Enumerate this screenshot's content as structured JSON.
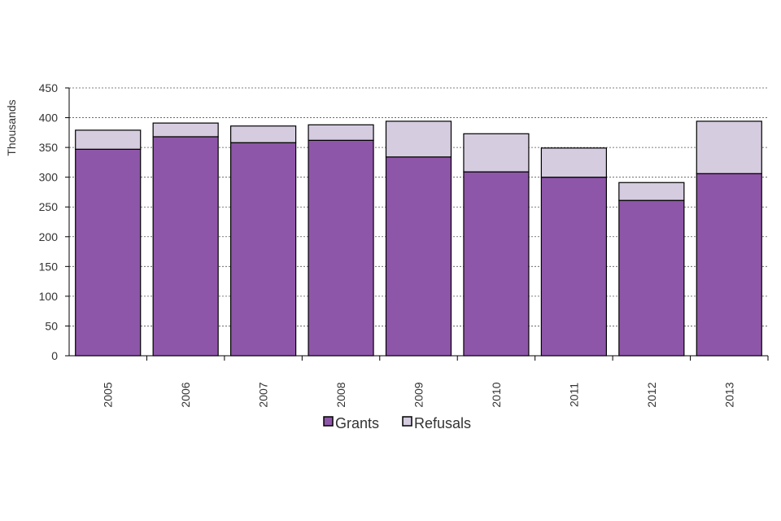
{
  "chart_data": {
    "type": "bar",
    "stacked": true,
    "title": "",
    "xlabel": "",
    "ylabel": "Thousands",
    "ylim": [
      0,
      450
    ],
    "yticks": [
      0,
      50,
      100,
      150,
      200,
      250,
      300,
      350,
      400,
      450
    ],
    "grid": true,
    "legend_position": "bottom",
    "categories": [
      "2005",
      "2006",
      "2007",
      "2008",
      "2009",
      "2010",
      "2011",
      "2012",
      "2013"
    ],
    "series": [
      {
        "name": "Grants",
        "color": "#8E56A8",
        "values": [
          347,
          368,
          358,
          362,
          334,
          309,
          300,
          261,
          306
        ]
      },
      {
        "name": "Refusals",
        "color": "#D5CCE0",
        "values": [
          32,
          23,
          28,
          26,
          60,
          64,
          49,
          30,
          88
        ]
      }
    ]
  }
}
